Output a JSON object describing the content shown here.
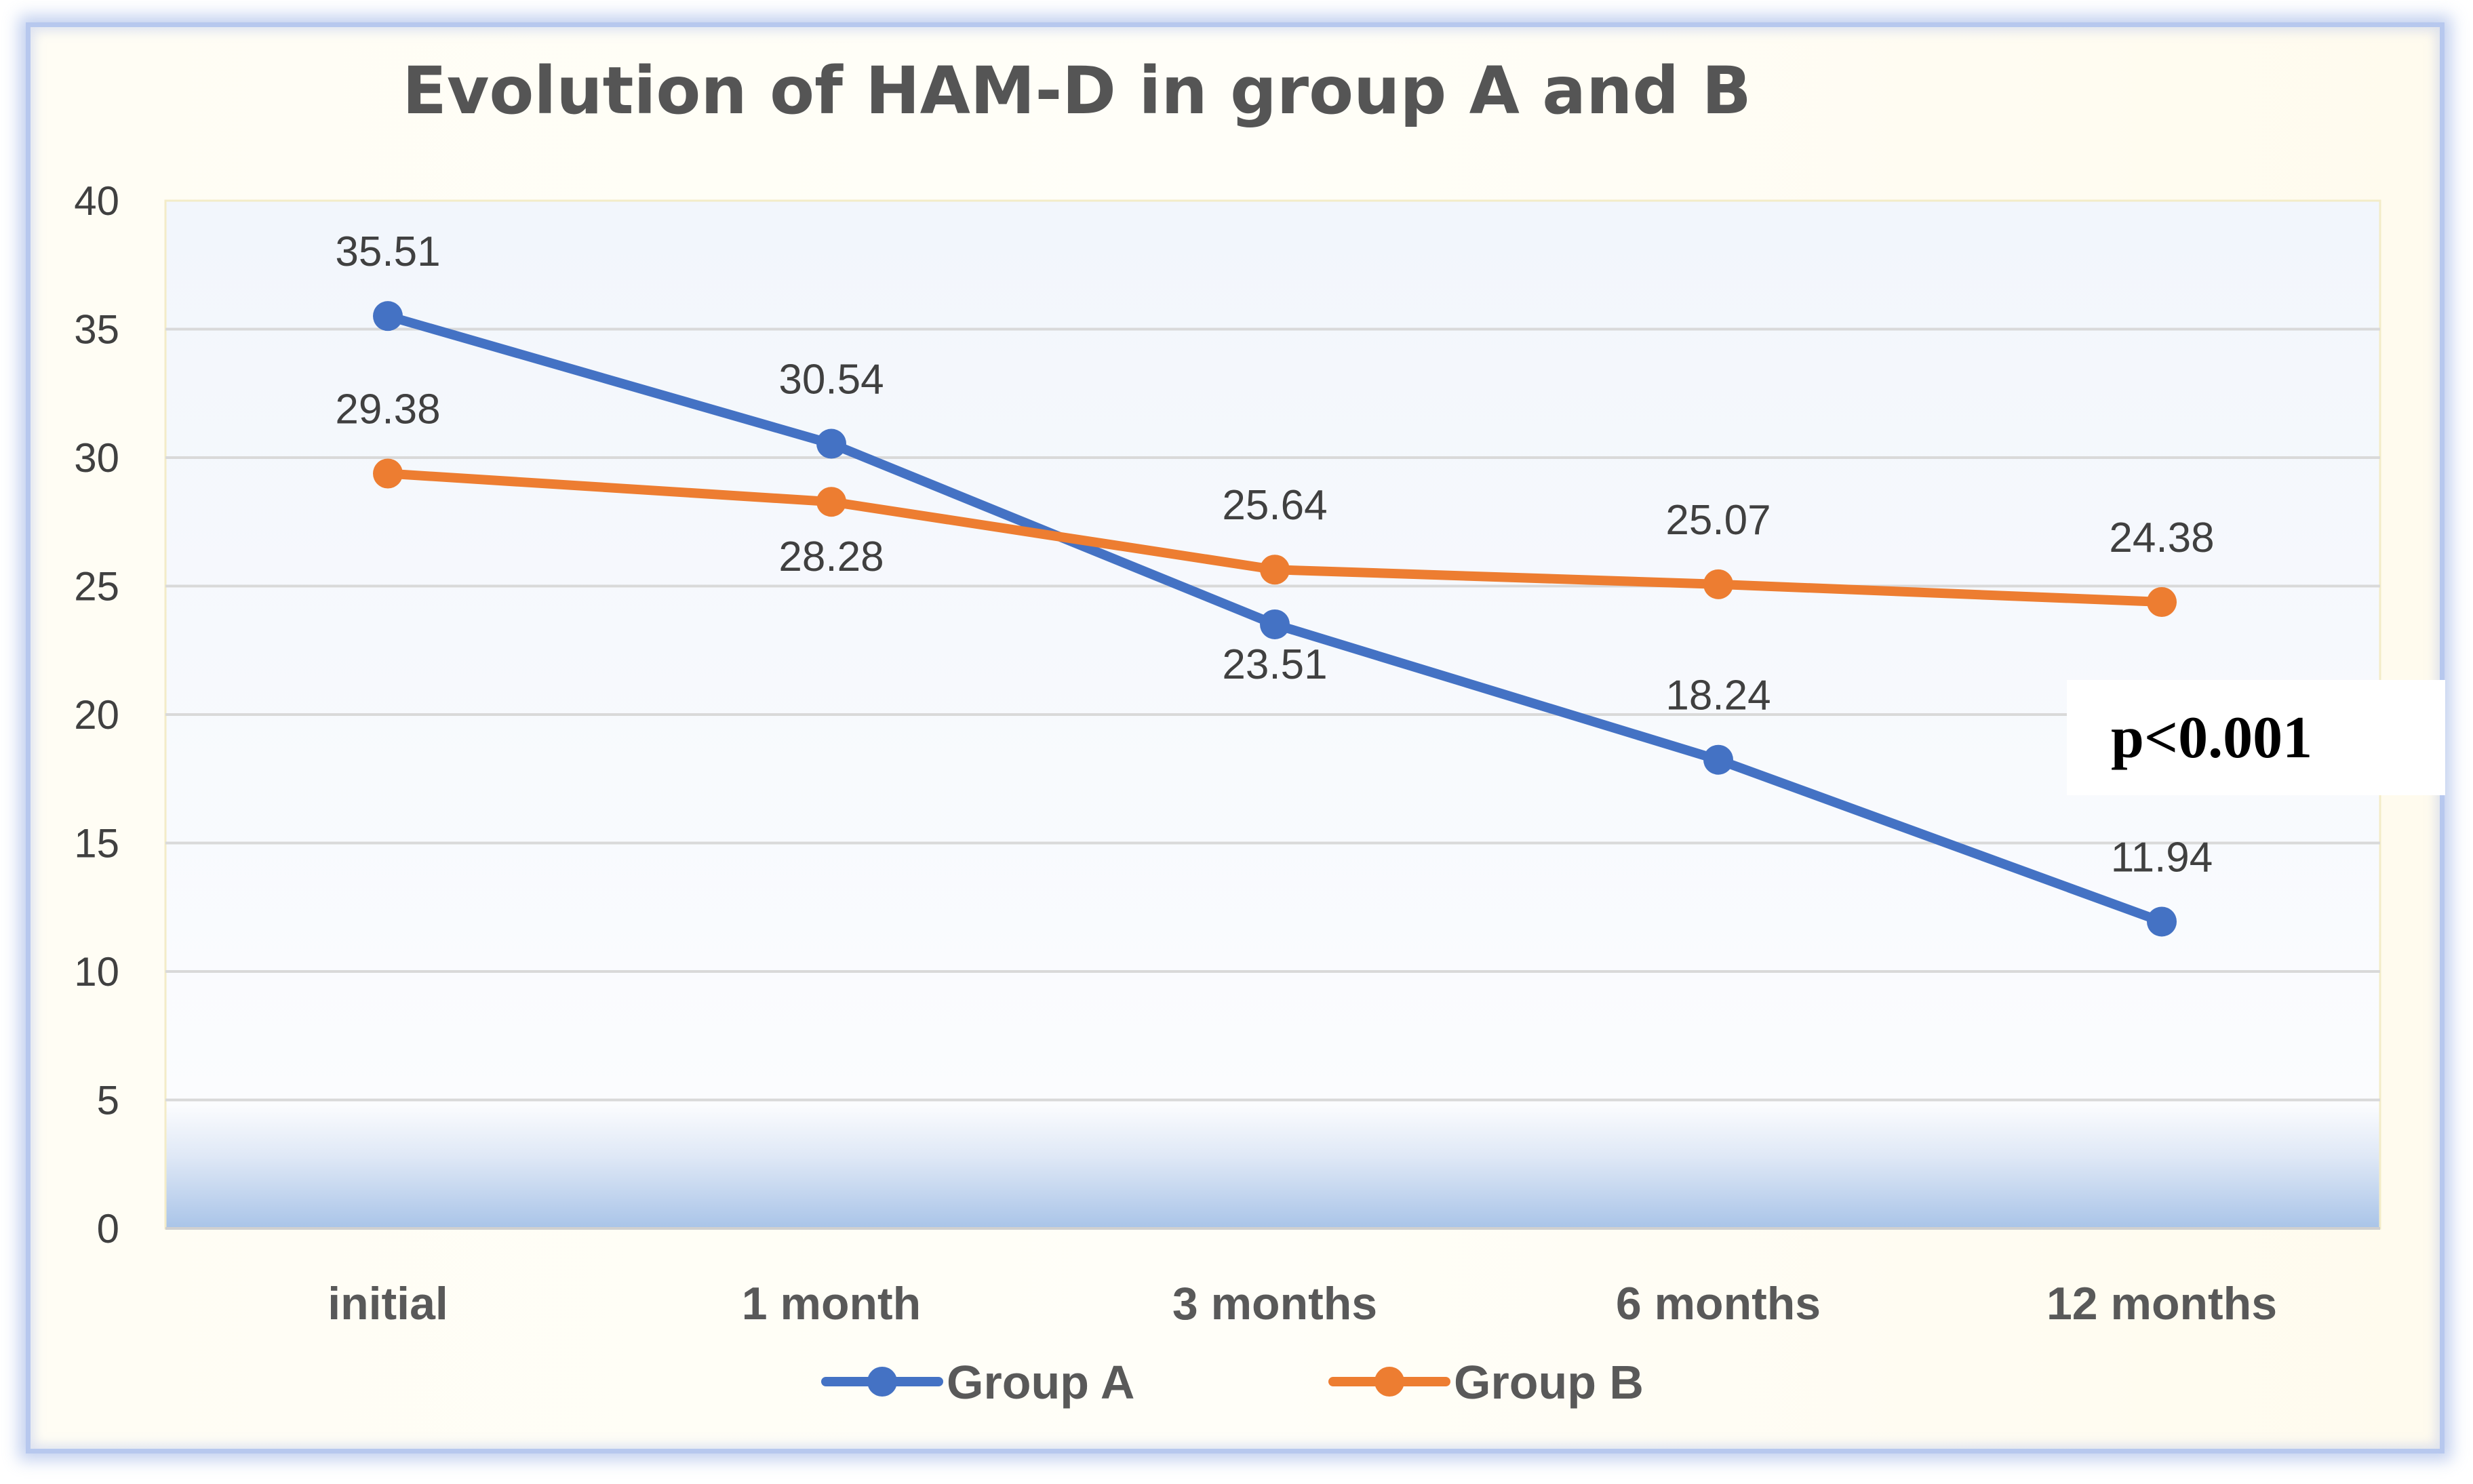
{
  "chart_data": {
    "type": "line",
    "title": "Evolution of HAM-D in group A and B",
    "categories": [
      "initial",
      "1 month",
      "3 months",
      "6 months",
      "12 months"
    ],
    "series": [
      {
        "name": "Group A",
        "color": "#4472C4",
        "values": [
          35.51,
          30.54,
          23.51,
          18.24,
          11.94
        ]
      },
      {
        "name": "Group B",
        "color": "#ED7D31",
        "values": [
          29.38,
          28.28,
          25.64,
          25.07,
          24.38
        ]
      }
    ],
    "data_labels": {
      "Group A": [
        "35.51",
        "30.54",
        "23.51",
        "18.24",
        "11.94"
      ],
      "Group B": [
        "29.38",
        "28.28",
        "25.64",
        "25.07",
        "24.38"
      ]
    },
    "y_ticks": [
      "0",
      "5",
      "10",
      "15",
      "20",
      "25",
      "30",
      "35",
      "40"
    ],
    "ylim": [
      0,
      40
    ],
    "xlabel": "",
    "ylabel": "",
    "grid": true,
    "legend_position": "bottom",
    "annotation": "p<0.001"
  }
}
